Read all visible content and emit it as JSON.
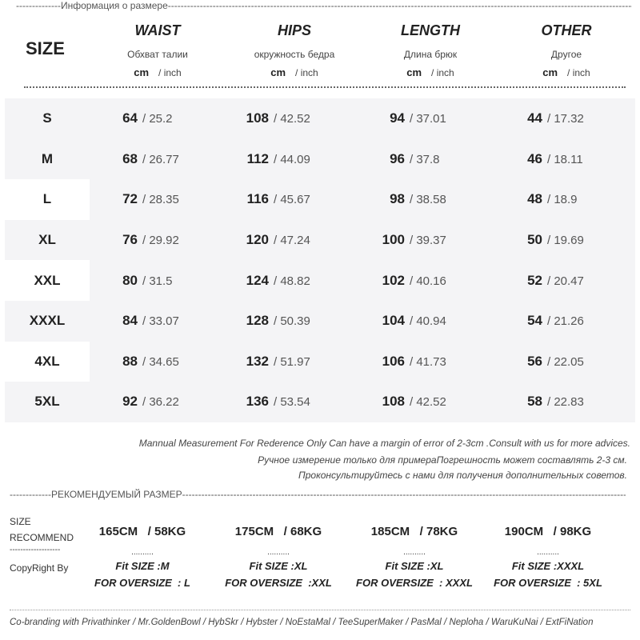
{
  "section_title": "Информация о размере",
  "header": {
    "size_label": "SIZE",
    "columns": [
      {
        "en": "WAIST",
        "ru": "Обхват талии"
      },
      {
        "en": "HIPS",
        "ru": "окружность бедра"
      },
      {
        "en": "LENGTH",
        "ru": "Длина брюк"
      },
      {
        "en": "OTHER",
        "ru": "Другое"
      }
    ],
    "unit_cm": "cm",
    "unit_inch": "/ inch"
  },
  "rows": [
    {
      "size": "S",
      "vals": [
        [
          "64",
          "/ 25.2"
        ],
        [
          "108",
          "/ 42.52"
        ],
        [
          "94",
          "/ 37.01"
        ],
        [
          "44",
          "/ 17.32"
        ]
      ]
    },
    {
      "size": "M",
      "vals": [
        [
          "68",
          "/ 26.77"
        ],
        [
          "112",
          "/ 44.09"
        ],
        [
          "96",
          "/ 37.8"
        ],
        [
          "46",
          "/ 18.11"
        ]
      ]
    },
    {
      "size": "L",
      "vals": [
        [
          "72",
          "/ 28.35"
        ],
        [
          "116",
          "/ 45.67"
        ],
        [
          "98",
          "/ 38.58"
        ],
        [
          "48",
          "/ 18.9"
        ]
      ]
    },
    {
      "size": "XL",
      "vals": [
        [
          "76",
          "/ 29.92"
        ],
        [
          "120",
          "/ 47.24"
        ],
        [
          "100",
          "/ 39.37"
        ],
        [
          "50",
          "/ 19.69"
        ]
      ]
    },
    {
      "size": "XXL",
      "vals": [
        [
          "80",
          "/ 31.5"
        ],
        [
          "124",
          "/ 48.82"
        ],
        [
          "102",
          "/ 40.16"
        ],
        [
          "52",
          "/ 20.47"
        ]
      ]
    },
    {
      "size": "XXXL",
      "vals": [
        [
          "84",
          "/ 33.07"
        ],
        [
          "128",
          "/ 50.39"
        ],
        [
          "104",
          "/ 40.94"
        ],
        [
          "54",
          "/ 21.26"
        ]
      ]
    },
    {
      "size": "4XL",
      "vals": [
        [
          "88",
          "/ 34.65"
        ],
        [
          "132",
          "/ 51.97"
        ],
        [
          "106",
          "/ 41.73"
        ],
        [
          "56",
          "/ 22.05"
        ]
      ]
    },
    {
      "size": "5XL",
      "vals": [
        [
          "92",
          "/ 36.22"
        ],
        [
          "136",
          "/ 53.54"
        ],
        [
          "108",
          "/ 42.52"
        ],
        [
          "58",
          "/ 22.83"
        ]
      ]
    }
  ],
  "notes": [
    "Mannual Measurement For Rederence Only Can have a margin of error of 2-3cm .Consult with us for more advices.",
    "Ручное измерение только для примераПогрешность может составлять 2-3 см.",
    "Проконсультируйтесь с нами для получения дополнительных советов."
  ],
  "recommend": {
    "title": "РЕКОМЕНДУЕМЫЙ РАЗМЕР",
    "label_line1": "SIZE",
    "label_line2": "RECOMMEND",
    "label_sep": "-------------------",
    "copyright": "CopyRight By",
    "sep": "..........",
    "items": [
      {
        "hw": "165CM   / 58KG",
        "fit": "Fit SIZE :M",
        "over": "FOR OVERSIZE  : L"
      },
      {
        "hw": "175CM   / 68KG",
        "fit": "Fit SIZE :XL",
        "over": "FOR OVERSIZE  :XXL"
      },
      {
        "hw": "185CM   / 78KG",
        "fit": "Fit SIZE :XL",
        "over": "FOR OVERSIZE  : XXXL"
      },
      {
        "hw": "190CM   / 98KG",
        "fit": "Fit SIZE :XXXL",
        "over": "FOR OVERSIZE  : 5XL"
      }
    ]
  },
  "branding": "Co-branding with Privathinker / Mr.GoldenBowl / HybSkr / Hybster / NoEstaMal / TeeSuperMaker / PasMal / Neploha / WaruKuNai  / ExtFiNation"
}
